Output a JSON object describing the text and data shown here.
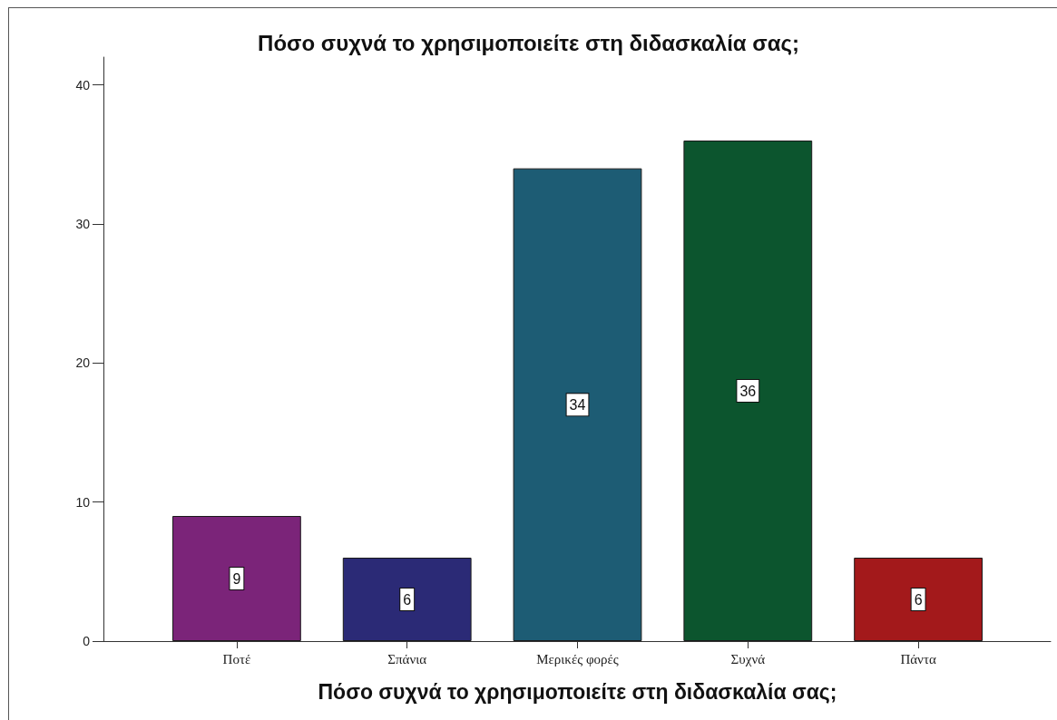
{
  "chart_data": {
    "type": "bar",
    "title": "Πόσο συχνά το χρησιμοποιείτε στη διδασκαλία σας;",
    "xlabel": "Πόσο συχνά το χρησιμοποιείτε στη διδασκαλία σας;",
    "categories": [
      "Ποτέ",
      "Σπάνια",
      "Μερικές φορές",
      "Συχνά",
      "Πάντα"
    ],
    "values": [
      9,
      6,
      34,
      36,
      6
    ],
    "colors": [
      "#7b2479",
      "#2b2a76",
      "#1d5c74",
      "#0c552e",
      "#a3191b"
    ],
    "ylim": [
      0,
      42
    ],
    "yticks": [
      0,
      10,
      20,
      30,
      40
    ],
    "data_labels": true
  }
}
